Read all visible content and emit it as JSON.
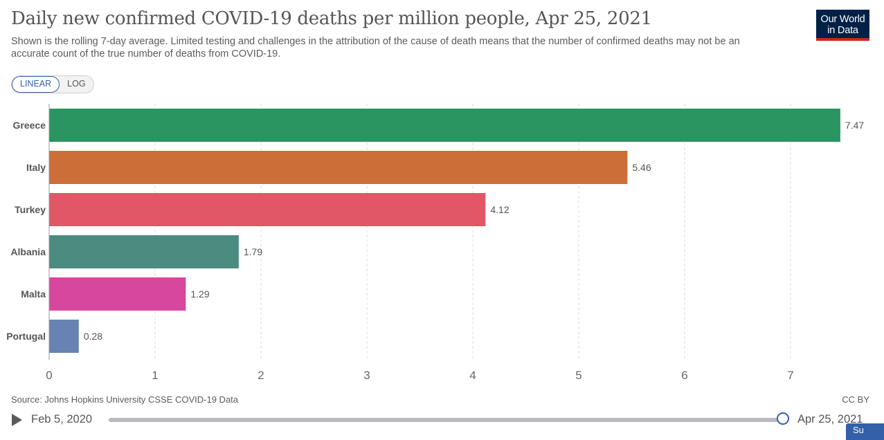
{
  "header": {
    "title": "Daily new confirmed COVID-19 deaths per million people, Apr 25, 2021",
    "subtitle": "Shown is the rolling 7-day average. Limited testing and challenges in the attribution of the cause of death means that the number of confirmed deaths may not be an accurate count of the true number of deaths from COVID-19."
  },
  "logo": {
    "line1": "Our World",
    "line2": "in Data"
  },
  "scale_toggle": {
    "linear_label": "LINEAR",
    "log_label": "LOG",
    "selected": "LINEAR"
  },
  "chart_data": {
    "type": "bar",
    "orientation": "horizontal",
    "title": "Daily new confirmed COVID-19 deaths per million people, Apr 25, 2021",
    "categories": [
      "Greece",
      "Italy",
      "Turkey",
      "Albania",
      "Malta",
      "Portugal"
    ],
    "values": [
      7.47,
      5.46,
      4.12,
      1.79,
      1.29,
      0.28
    ],
    "value_labels": [
      "7.47",
      "5.46",
      "4.12",
      "1.79",
      "1.29",
      "0.28"
    ],
    "colors": [
      "#2a9560",
      "#cc6e38",
      "#e05867",
      "#4c8b80",
      "#d6479d",
      "#6882b3"
    ],
    "xlim": [
      0,
      7.5
    ],
    "xticks": [
      0,
      1,
      2,
      3,
      4,
      5,
      6,
      7
    ],
    "grid": true,
    "xlabel": "",
    "ylabel": ""
  },
  "footer": {
    "source": "Source: Johns Hopkins University CSSE COVID-19 Data",
    "license": "CC BY"
  },
  "timeline": {
    "start_label": "Feb 5, 2020",
    "end_label": "Apr 25, 2021",
    "position": 1.0
  },
  "corner_button": {
    "label": "Su"
  },
  "colors": {
    "accent": "#3360a9",
    "logo_bg": "#002147",
    "logo_bar": "#ce261e"
  }
}
